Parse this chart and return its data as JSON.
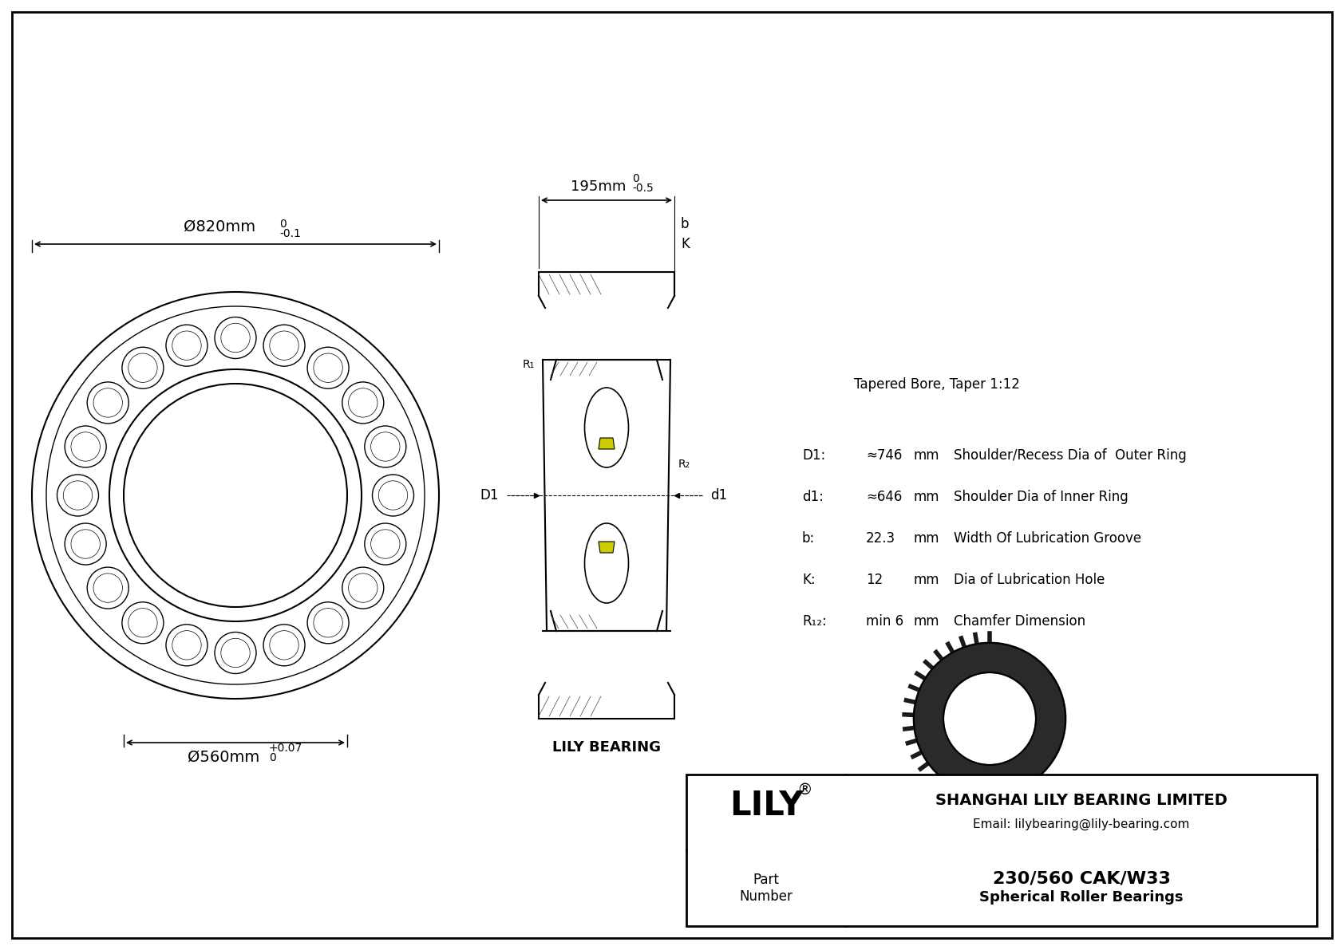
{
  "bg_color": "#ffffff",
  "line_color": "#000000",
  "title": "230/560 CAK/W33",
  "subtitle": "Spherical Roller Bearings",
  "company": "SHANGHAI LILY BEARING LIMITED",
  "email": "Email: lilybearing@lily-bearing.com",
  "logo": "LILY",
  "part_label": "Part\nNumber",
  "dim_D": "Ø820mm",
  "dim_D_tol": "-0.1",
  "dim_D_tol_up": "0",
  "dim_d": "Ø560mm",
  "dim_d_tol": "+0.07",
  "dim_d_tol_down": "0",
  "dim_B": "195mm",
  "dim_B_tol": "-0.5",
  "dim_B_tol_up": "0",
  "taper_note": "Tapered Bore, Taper 1:12",
  "spec_D1_label": "D1:",
  "spec_D1_val": "≈746",
  "spec_D1_unit": "mm",
  "spec_D1_desc": "Shoulder/Recess Dia of  Outer Ring",
  "spec_d1_label": "d1:",
  "spec_d1_val": "≈646",
  "spec_d1_unit": "mm",
  "spec_d1_desc": "Shoulder Dia of Inner Ring",
  "spec_b_label": "b:",
  "spec_b_val": "22.3",
  "spec_b_unit": "mm",
  "spec_b_desc": "Width Of Lubrication Groove",
  "spec_K_label": "K:",
  "spec_K_val": "12",
  "spec_K_unit": "mm",
  "spec_K_desc": "Dia of Lubrication Hole",
  "spec_R_label": "R₁₂:",
  "spec_R_val": "min 6",
  "spec_R_unit": "mm",
  "spec_R_desc": "Chamfer Dimension",
  "lily_label": "LILY BEARING"
}
